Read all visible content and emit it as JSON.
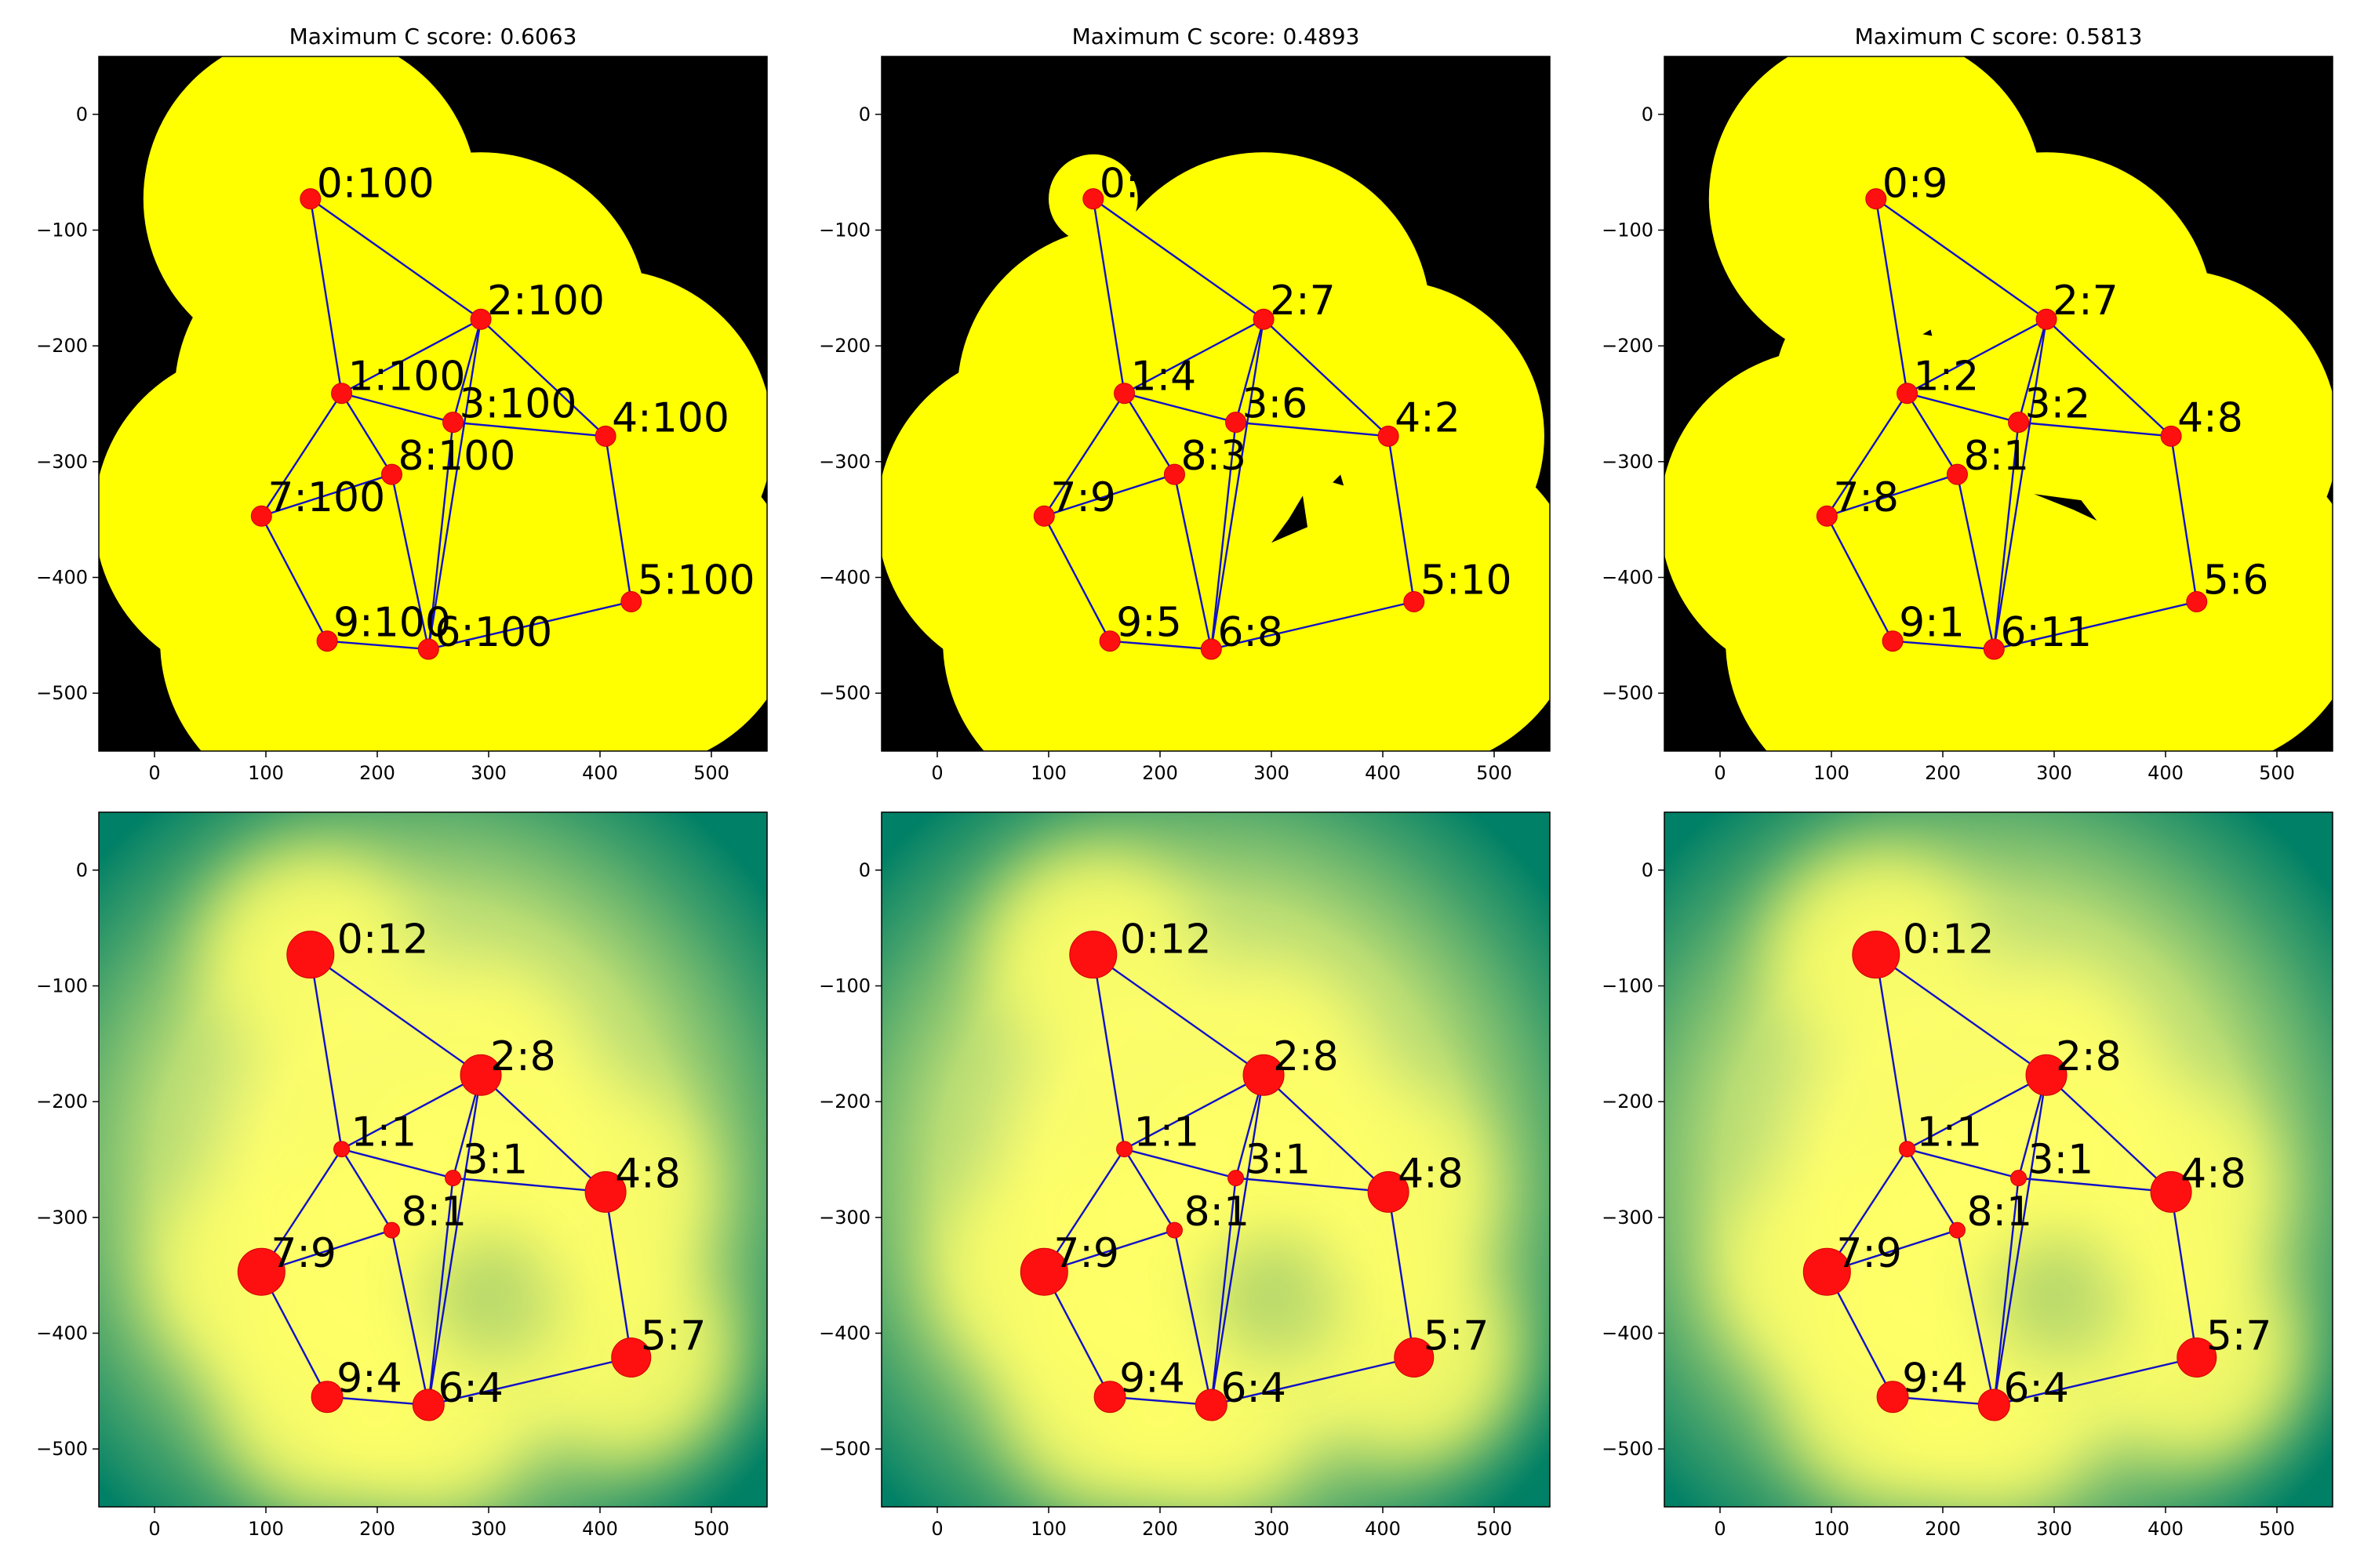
{
  "chart_data": {
    "type": "graph-grid",
    "x_ticks": [
      0,
      100,
      200,
      300,
      400,
      500
    ],
    "y_ticks": [
      0,
      -100,
      -200,
      -300,
      -400,
      -500
    ],
    "xlim": [
      -50,
      550
    ],
    "ylim": [
      -550,
      50
    ],
    "colors": {
      "coverage": "#ffff00",
      "background": "#000000",
      "heat_low": "#008066",
      "heat_high": "#ffff66",
      "node": "#ff1010",
      "edge": "#1010c8"
    },
    "nodes": [
      {
        "id": 0,
        "x": 140,
        "y": -73
      },
      {
        "id": 1,
        "x": 168,
        "y": -241
      },
      {
        "id": 2,
        "x": 293,
        "y": -177
      },
      {
        "id": 3,
        "x": 268,
        "y": -266
      },
      {
        "id": 4,
        "x": 405,
        "y": -278
      },
      {
        "id": 5,
        "x": 428,
        "y": -421
      },
      {
        "id": 6,
        "x": 246,
        "y": -462
      },
      {
        "id": 7,
        "x": 96,
        "y": -347
      },
      {
        "id": 8,
        "x": 213,
        "y": -311
      },
      {
        "id": 9,
        "x": 155,
        "y": -455
      }
    ],
    "edges": [
      [
        0,
        1
      ],
      [
        0,
        2
      ],
      [
        1,
        2
      ],
      [
        1,
        3
      ],
      [
        1,
        7
      ],
      [
        1,
        8
      ],
      [
        2,
        3
      ],
      [
        2,
        4
      ],
      [
        2,
        6
      ],
      [
        3,
        4
      ],
      [
        3,
        6
      ],
      [
        7,
        8
      ],
      [
        7,
        9
      ],
      [
        8,
        6
      ],
      [
        9,
        6
      ],
      [
        6,
        5
      ],
      [
        5,
        4
      ]
    ],
    "panels": [
      {
        "row": 0,
        "col": 0,
        "kind": "coverage",
        "title": "Maximum C score: 0.6063",
        "labels": [
          "0:100",
          "1:100",
          "2:100",
          "3:100",
          "4:100",
          "5:100",
          "6:100",
          "7:100",
          "8:100",
          "9:100"
        ]
      },
      {
        "row": 0,
        "col": 1,
        "kind": "coverage",
        "title": "Maximum C score: 0.4893",
        "labels": [
          "0:",
          "1:4",
          "2:7",
          "3:6",
          "4:2",
          "5:10",
          "6:8",
          "7:9",
          "8:3",
          "9:5"
        ]
      },
      {
        "row": 0,
        "col": 2,
        "kind": "coverage",
        "title": "Maximum C score: 0.5813",
        "labels": [
          "0:9",
          "1:2",
          "2:7",
          "3:2",
          "4:8",
          "5:6",
          "6:11",
          "7:8",
          "8:1",
          "9:1"
        ]
      },
      {
        "row": 1,
        "col": 0,
        "kind": "heatmap",
        "title": "",
        "labels": [
          "0:12",
          "1:1",
          "2:8",
          "3:1",
          "4:8",
          "5:7",
          "6:4",
          "7:9",
          "8:1",
          "9:4"
        ]
      },
      {
        "row": 1,
        "col": 1,
        "kind": "heatmap",
        "title": "",
        "labels": [
          "0:12",
          "1:1",
          "2:8",
          "3:1",
          "4:8",
          "5:7",
          "6:4",
          "7:9",
          "8:1",
          "9:4"
        ]
      },
      {
        "row": 1,
        "col": 2,
        "kind": "heatmap",
        "title": "",
        "labels": [
          "0:12",
          "1:1",
          "2:8",
          "3:1",
          "4:8",
          "5:7",
          "6:4",
          "7:9",
          "8:1",
          "9:4"
        ]
      }
    ]
  }
}
